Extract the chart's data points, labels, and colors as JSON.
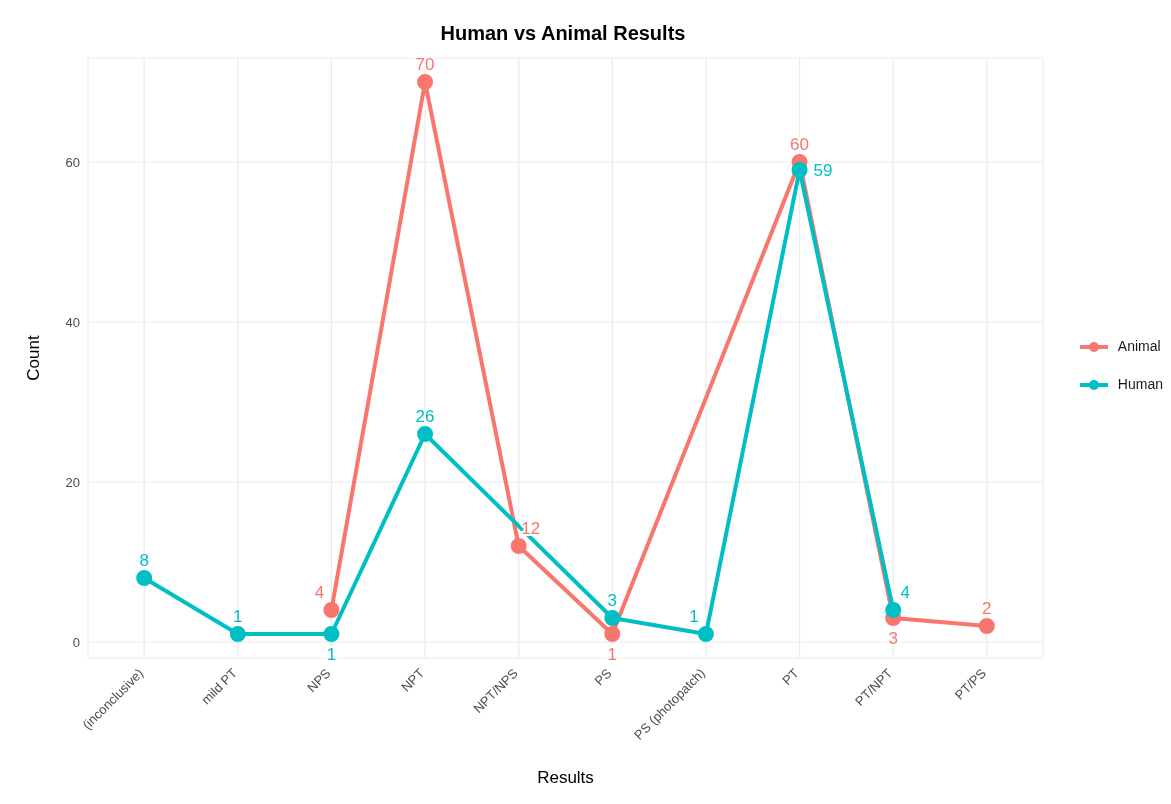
{
  "chart_data": {
    "type": "line",
    "title": "Human vs Animal Results",
    "xlabel": "Results",
    "ylabel": "Count",
    "categories": [
      "(inconclusive)",
      "mild PT",
      "NPS",
      "NPT",
      "NPT/NPS",
      "PS",
      "PS (photopatch)",
      "PT",
      "PT/NPT",
      "PT/PS"
    ],
    "series": [
      {
        "name": "Animal",
        "color": "#f8766d",
        "values": [
          null,
          null,
          4,
          70,
          12,
          1,
          null,
          60,
          3,
          2
        ]
      },
      {
        "name": "Human",
        "color": "#00bfc4",
        "values": [
          8,
          1,
          1,
          26,
          null,
          3,
          1,
          59,
          4,
          null
        ]
      }
    ],
    "ylim": [
      -2,
      73
    ],
    "yticks": [
      0,
      20,
      40,
      60
    ],
    "grid": true,
    "legend": "right",
    "marker": "circle",
    "line_style": "solid",
    "data_labels": true
  }
}
